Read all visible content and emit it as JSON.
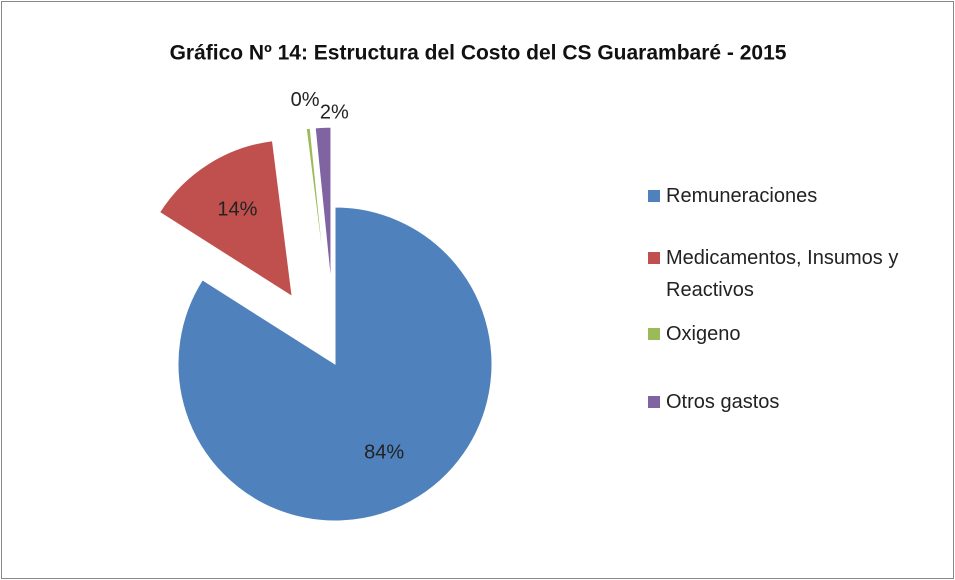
{
  "chart_data": {
    "type": "pie",
    "title": "Gráfico Nº 14: Estructura del Costo del CS Guarambaré - 2015",
    "categories": [
      "Remuneraciones",
      "Medicamentos, Insumos y Reactivos",
      "Oxigeno",
      "Otros gastos"
    ],
    "values": [
      84,
      14,
      0.4,
      1.6
    ],
    "value_labels": [
      "84%",
      "14%",
      "0%",
      "2%"
    ],
    "colors": [
      "#4f81bd",
      "#c0504d",
      "#9bbb59",
      "#8064a2"
    ],
    "legend": "right"
  }
}
